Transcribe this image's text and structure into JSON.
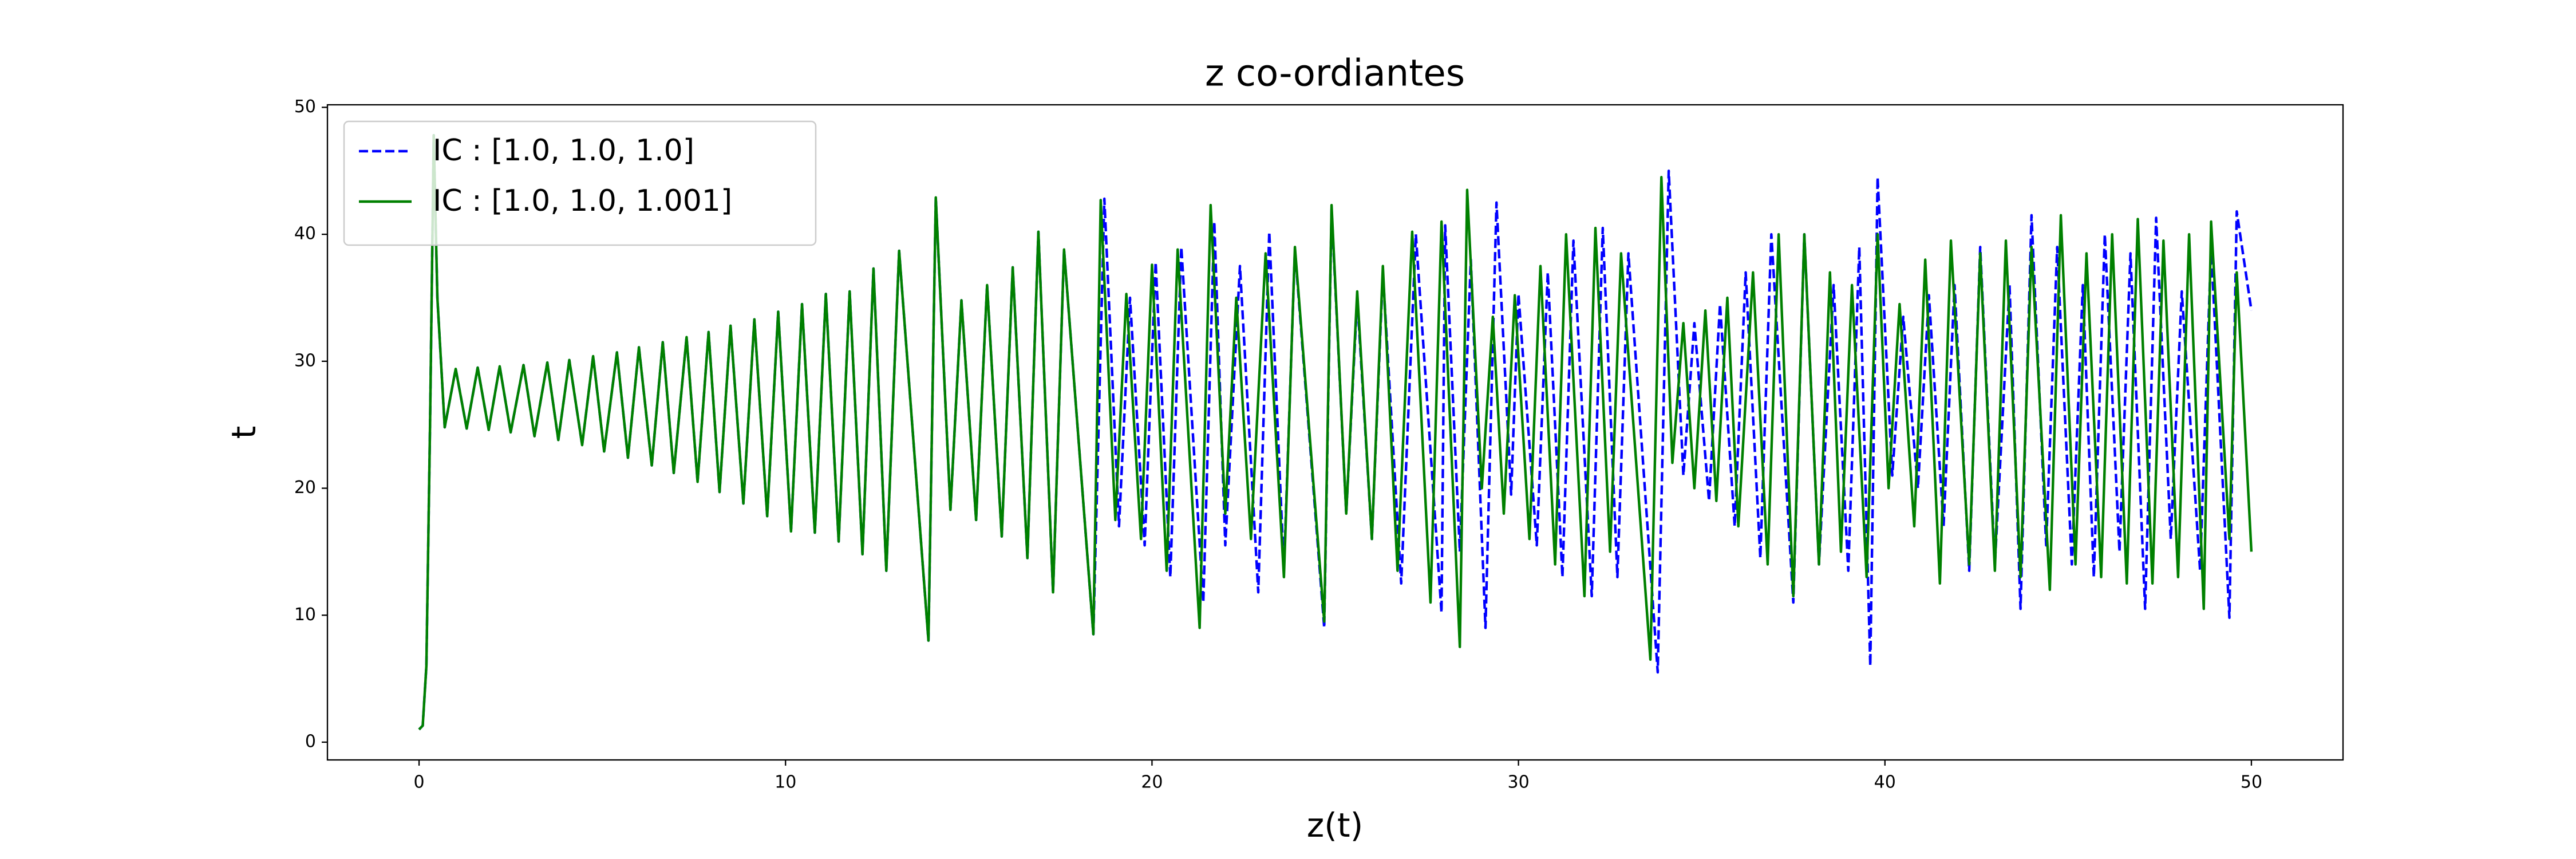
{
  "chart_data": {
    "type": "line",
    "title": "z co-ordiantes",
    "xlabel": "z(t)",
    "ylabel": "t",
    "xlim": [
      -2.5,
      52.5
    ],
    "ylim": [
      -1.4,
      50.2
    ],
    "xticks": [
      0,
      10,
      20,
      30,
      40,
      50
    ],
    "yticks": [
      0,
      10,
      20,
      30,
      40,
      50
    ],
    "grid": false,
    "legend": "upper left",
    "series": [
      {
        "name": "IC : [1.0, 1.0, 1.0]",
        "color": "#0000ff",
        "linestyle": "dashed",
        "x": [
          0,
          0.1,
          0.2,
          0.3,
          0.4,
          0.5,
          0.7,
          1.0,
          1.3,
          1.6,
          1.9,
          2.2,
          2.5,
          2.85,
          3.15,
          3.5,
          3.8,
          4.1,
          4.45,
          4.75,
          5.05,
          5.4,
          5.7,
          6.0,
          6.35,
          6.65,
          6.95,
          7.3,
          7.6,
          7.9,
          8.2,
          8.5,
          8.85,
          9.15,
          9.5,
          9.8,
          10.15,
          10.45,
          10.8,
          11.1,
          11.45,
          11.75,
          12.1,
          12.4,
          12.75,
          13.1,
          13.9,
          14.1,
          14.5,
          14.8,
          15.2,
          15.5,
          15.9,
          16.2,
          16.6,
          16.9,
          17.3,
          17.6,
          18.4,
          18.7,
          19.1,
          19.4,
          19.8,
          20.1,
          20.5,
          20.8,
          21.4,
          21.7,
          22.0,
          22.4,
          22.9,
          23.2,
          23.6,
          23.9,
          24.7,
          24.9,
          25.3,
          25.6,
          26.0,
          26.3,
          26.8,
          27.2,
          27.9,
          28.0,
          28.4,
          28.7,
          29.1,
          29.4,
          29.8,
          30.0,
          30.5,
          30.8,
          31.2,
          31.5,
          32.0,
          32.3,
          32.7,
          33.0,
          33.8,
          34.1,
          34.5,
          34.8,
          35.2,
          35.5,
          35.9,
          36.2,
          36.6,
          36.9,
          37.5,
          37.8,
          38.2,
          38.6,
          39.0,
          39.3,
          39.6,
          39.8,
          40.2,
          40.5,
          40.9,
          41.2,
          41.6,
          41.9,
          42.3,
          42.6,
          43.0,
          43.4,
          43.7,
          44.0,
          44.4,
          44.7,
          45.1,
          45.4,
          45.7,
          46.0,
          46.4,
          46.7,
          47.1,
          47.4,
          47.8,
          48.1,
          48.6,
          48.9,
          49.4,
          49.6,
          50.0
        ],
        "values": [
          1,
          1.3,
          6,
          25,
          47.8,
          35,
          24.8,
          29.4,
          24.7,
          29.5,
          24.6,
          29.6,
          24.4,
          29.7,
          24.1,
          29.9,
          23.8,
          30.1,
          23.4,
          30.4,
          22.9,
          30.7,
          22.4,
          31.1,
          21.8,
          31.5,
          21.2,
          31.9,
          20.5,
          32.3,
          19.7,
          32.8,
          18.8,
          33.3,
          17.8,
          33.9,
          16.6,
          34.5,
          16.5,
          35.3,
          15.8,
          35.5,
          14.8,
          37.3,
          13.5,
          38.7,
          8.0,
          42.9,
          18.3,
          34.8,
          17.5,
          36,
          16.2,
          37.4,
          14.5,
          40.2,
          11.8,
          38.8,
          8.5,
          42.8,
          17,
          35,
          15.5,
          37.8,
          13,
          39,
          11,
          41,
          15.5,
          37.5,
          11.8,
          40.2,
          13.5,
          38.8,
          9,
          42,
          18,
          35,
          16,
          37,
          12.5,
          40,
          10.2,
          40.7,
          15,
          38,
          9,
          42.5,
          19.5,
          35.3,
          15.5,
          37,
          13,
          39.5,
          11.5,
          40.5,
          13,
          38.5,
          5.5,
          45,
          21,
          33,
          19,
          34.5,
          17,
          37,
          14.5,
          40,
          11,
          40,
          14,
          36,
          13.5,
          39,
          6,
          44.5,
          21,
          33.5,
          20,
          35.2,
          17,
          36,
          13.5,
          39,
          14,
          36,
          10.5,
          41.5,
          15.5,
          39,
          14,
          36,
          13,
          40,
          15,
          38.5,
          10.5,
          41.3,
          16,
          35.5,
          13.5,
          39,
          9.8,
          41.8,
          34
        ]
      },
      {
        "name": "IC : [1.0, 1.0, 1.001]",
        "color": "#008000",
        "linestyle": "solid",
        "x": [
          0,
          0.1,
          0.2,
          0.3,
          0.4,
          0.5,
          0.7,
          1.0,
          1.3,
          1.6,
          1.9,
          2.2,
          2.5,
          2.85,
          3.15,
          3.5,
          3.8,
          4.1,
          4.45,
          4.75,
          5.05,
          5.4,
          5.7,
          6.0,
          6.35,
          6.65,
          6.95,
          7.3,
          7.6,
          7.9,
          8.2,
          8.5,
          8.85,
          9.15,
          9.5,
          9.8,
          10.15,
          10.45,
          10.8,
          11.1,
          11.45,
          11.75,
          12.1,
          12.4,
          12.75,
          13.1,
          13.9,
          14.1,
          14.5,
          14.8,
          15.2,
          15.5,
          15.9,
          16.2,
          16.6,
          16.9,
          17.3,
          17.6,
          18.4,
          18.6,
          19.0,
          19.3,
          19.7,
          20.0,
          20.4,
          20.7,
          21.3,
          21.6,
          22.0,
          22.3,
          22.7,
          23.1,
          23.6,
          23.9,
          24.7,
          24.9,
          25.3,
          25.6,
          26.0,
          26.3,
          26.7,
          27.1,
          27.6,
          27.9,
          28.4,
          28.6,
          29.0,
          29.3,
          29.6,
          29.9,
          30.3,
          30.6,
          31.0,
          31.3,
          31.8,
          32.1,
          32.5,
          32.8,
          33.6,
          33.9,
          34.2,
          34.5,
          34.8,
          35.1,
          35.4,
          35.7,
          36.0,
          36.4,
          36.8,
          37.1,
          37.5,
          37.8,
          38.2,
          38.5,
          38.8,
          39.1,
          39.5,
          39.8,
          40.1,
          40.4,
          40.8,
          41.1,
          41.5,
          41.8,
          42.3,
          42.6,
          43.0,
          43.3,
          43.7,
          44.0,
          44.5,
          44.8,
          45.2,
          45.5,
          45.9,
          46.2,
          46.6,
          46.9,
          47.3,
          47.6,
          48.0,
          48.3,
          48.7,
          48.9,
          49.4,
          49.6,
          50.0
        ],
        "values": [
          1,
          1.3,
          6,
          25,
          47.8,
          35,
          24.8,
          29.4,
          24.7,
          29.5,
          24.6,
          29.6,
          24.4,
          29.7,
          24.1,
          29.9,
          23.8,
          30.1,
          23.4,
          30.4,
          22.9,
          30.7,
          22.4,
          31.1,
          21.8,
          31.5,
          21.2,
          31.9,
          20.5,
          32.3,
          19.7,
          32.8,
          18.8,
          33.3,
          17.8,
          33.9,
          16.6,
          34.5,
          16.5,
          35.3,
          15.8,
          35.5,
          14.8,
          37.3,
          13.5,
          38.7,
          8.0,
          42.9,
          18.3,
          34.8,
          17.5,
          36,
          16.2,
          37.4,
          14.5,
          40.2,
          11.8,
          38.8,
          8.5,
          42.7,
          17.5,
          35.3,
          16,
          37.6,
          13.5,
          38.8,
          9,
          42.3,
          18,
          35,
          16,
          38.5,
          13,
          39,
          9.5,
          42.3,
          18,
          35.5,
          16,
          37.5,
          13.5,
          40.2,
          11,
          41,
          7.5,
          43.5,
          20,
          33.5,
          18,
          35.2,
          16,
          37.5,
          14,
          40,
          11.5,
          40.5,
          15,
          38.5,
          6.5,
          44.5,
          22,
          33,
          20,
          34,
          19,
          35,
          17,
          37,
          14,
          40,
          11.5,
          40,
          14,
          37,
          15,
          36,
          13,
          40,
          20,
          34.5,
          17,
          38,
          12.5,
          39.5,
          14,
          38.5,
          13.5,
          39.5,
          13,
          39,
          12,
          41.5,
          14,
          38.5,
          13,
          40,
          12.5,
          41.2,
          12.5,
          39.5,
          13,
          40,
          10.5,
          41,
          16,
          37,
          15
        ]
      }
    ]
  }
}
